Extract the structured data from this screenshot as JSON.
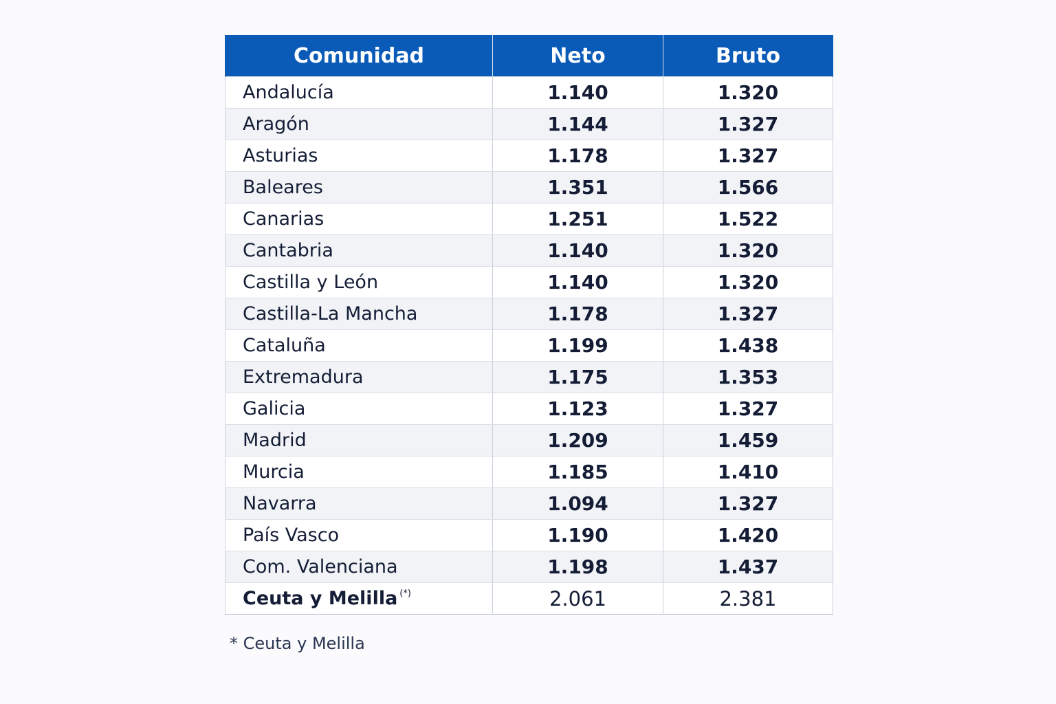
{
  "table": {
    "headers": [
      "Comunidad",
      "Neto",
      "Bruto"
    ],
    "rows": [
      {
        "comunidad": "Andalucía",
        "neto": "1.140",
        "bruto": "1.320"
      },
      {
        "comunidad": "Aragón",
        "neto": "1.144",
        "bruto": "1.327"
      },
      {
        "comunidad": "Asturias",
        "neto": "1.178",
        "bruto": "1.327"
      },
      {
        "comunidad": "Baleares",
        "neto": "1.351",
        "bruto": "1.566"
      },
      {
        "comunidad": "Canarias",
        "neto": "1.251",
        "bruto": "1.522"
      },
      {
        "comunidad": "Cantabria",
        "neto": "1.140",
        "bruto": "1.320"
      },
      {
        "comunidad": "Castilla y León",
        "neto": "1.140",
        "bruto": "1.320"
      },
      {
        "comunidad": "Castilla-La Mancha",
        "neto": "1.178",
        "bruto": "1.327"
      },
      {
        "comunidad": "Cataluña",
        "neto": "1.199",
        "bruto": "1.438"
      },
      {
        "comunidad": "Extremadura",
        "neto": "1.175",
        "bruto": "1.353"
      },
      {
        "comunidad": "Galicia",
        "neto": "1.123",
        "bruto": "1.327"
      },
      {
        "comunidad": "Madrid",
        "neto": "1.209",
        "bruto": "1.459"
      },
      {
        "comunidad": "Murcia",
        "neto": "1.185",
        "bruto": "1.410"
      },
      {
        "comunidad": "Navarra",
        "neto": "1.094",
        "bruto": "1.327"
      },
      {
        "comunidad": "País Vasco",
        "neto": "1.190",
        "bruto": "1.420"
      },
      {
        "comunidad": "Com. Valenciana",
        "neto": "1.198",
        "bruto": "1.437"
      },
      {
        "comunidad": "Ceuta y Melilla",
        "neto": "2.061",
        "bruto": "2.381",
        "mark": "(*)"
      }
    ]
  },
  "footnote": "* Ceuta y Melilla",
  "colors": {
    "header_bg": "#0a5bb8",
    "header_text": "#ffffff",
    "stripe": "#f1f3f7",
    "text": "#141d35"
  }
}
